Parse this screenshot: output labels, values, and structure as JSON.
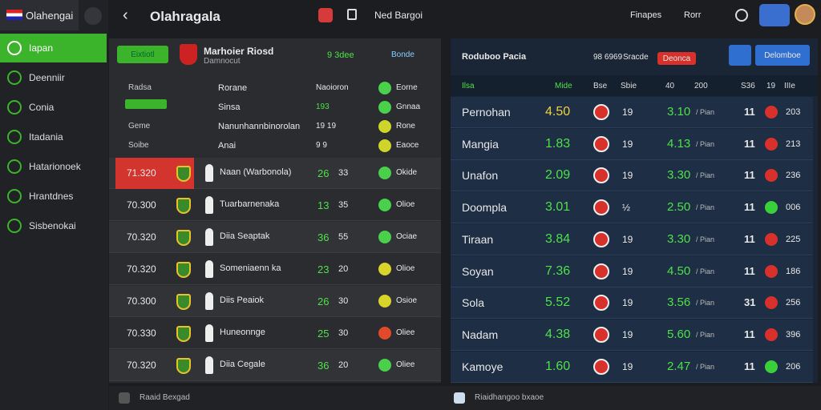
{
  "sidebar": {
    "brand": "Olahengai",
    "items": [
      "Iapan",
      "Deenniir",
      "Conia",
      "Itadania",
      "Hatarionoek",
      "Hrantdnes",
      "Sisbenokai"
    ]
  },
  "topbar": {
    "title": "Olahragala",
    "menu": "Ned Bargoi",
    "links": [
      "Finapes",
      "Rorr"
    ]
  },
  "left": {
    "button": "Eixtiotl",
    "team": "Marhoier Riosd",
    "team_sub": "Damnocut",
    "score": "9 3dee",
    "link": "Bonde",
    "top_rows": [
      {
        "time": "Radsa",
        "player": "Rorane",
        "odds": "Naoioron",
        "val": "Eorne"
      },
      {
        "time": "",
        "player": "Sinsa",
        "odds": "193",
        "val": "Gnnaa"
      },
      {
        "time": "Geme",
        "player": "Nanunhannbinorolan",
        "odds": "19 19",
        "val": "Rone"
      },
      {
        "time": "Soibe",
        "player": "Anai",
        "odds": "9 9",
        "val": "Eaoce"
      }
    ],
    "rows": [
      {
        "time": "71.320",
        "player": "Naan (Warbonola)",
        "a": "26",
        "b": "33",
        "status": "Okide"
      },
      {
        "time": "70.300",
        "player": "Tuarbarnenaka",
        "a": "13",
        "b": "35",
        "status": "Olioe"
      },
      {
        "time": "70.320",
        "player": "Diia Seaptak",
        "a": "36",
        "b": "55",
        "status": "Ociae"
      },
      {
        "time": "70.320",
        "player": "Someniaenn ka",
        "a": "23",
        "b": "20",
        "status": "Olioe"
      },
      {
        "time": "70.300",
        "player": "Diis Peaiok",
        "a": "26",
        "b": "30",
        "status": "Osioe"
      },
      {
        "time": "70.330",
        "player": "Huneonnge",
        "a": "25",
        "b": "30",
        "status": "Oliee"
      },
      {
        "time": "70.320",
        "player": "Diia Cegale",
        "a": "36",
        "b": "20",
        "status": "Oliee"
      }
    ]
  },
  "right": {
    "title": "Roduboo Pacia",
    "code": "98 6969",
    "label": "Sracde",
    "red_button": "Deonca",
    "blue_button": "Delomboe",
    "columns": [
      "Ilsa",
      "Mide",
      "Bse",
      "Sbie",
      "40",
      "200",
      "S36",
      "19",
      "IIIe"
    ],
    "unit": "/ Pian",
    "rows": [
      {
        "name": "Pernohan",
        "odds": "4.50",
        "n": "19",
        "val": "3.10",
        "c": "11",
        "t": "203"
      },
      {
        "name": "Mangia",
        "odds": "1.83",
        "n": "19",
        "val": "4.13",
        "c": "11",
        "t": "213"
      },
      {
        "name": "Unafon",
        "odds": "2.09",
        "n": "19",
        "val": "3.30",
        "c": "11",
        "t": "236"
      },
      {
        "name": "Doompla",
        "odds": "3.01",
        "n": "½",
        "val": "2.50",
        "c": "11",
        "t": "006"
      },
      {
        "name": "Tiraan",
        "odds": "3.84",
        "n": "19",
        "val": "3.30",
        "c": "11",
        "t": "225"
      },
      {
        "name": "Soyan",
        "odds": "7.36",
        "n": "19",
        "val": "4.50",
        "c": "11",
        "t": "186"
      },
      {
        "name": "Sola",
        "odds": "5.52",
        "n": "19",
        "val": "3.56",
        "c": "31",
        "t": "256"
      },
      {
        "name": "Nadam",
        "odds": "4.38",
        "n": "19",
        "val": "5.60",
        "c": "11",
        "t": "396"
      },
      {
        "name": "Kamoye",
        "odds": "1.60",
        "n": "19",
        "val": "2.47",
        "c": "11",
        "t": "206"
      }
    ]
  },
  "bottom": {
    "left": "Raaid Bexgad",
    "right": "Riaidhangoo bxaoe"
  }
}
